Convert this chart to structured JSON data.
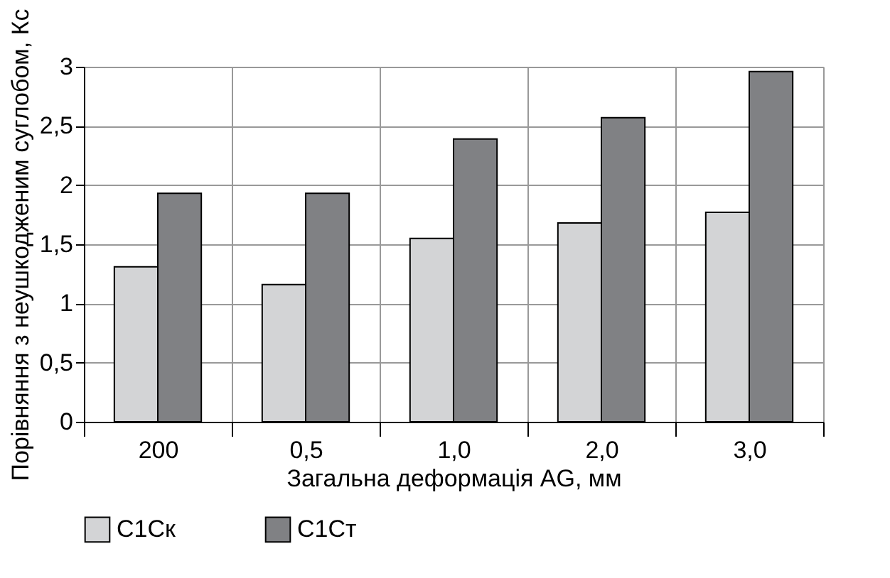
{
  "chart_data": {
    "type": "bar",
    "xlabel": "Загальна деформація AG, мм",
    "ylabel": "Порівняння з неушкодженим суглобом, Кс",
    "categories": [
      "200",
      "0,5",
      "1,0",
      "2,0",
      "3,0"
    ],
    "series": [
      {
        "name": "С1Ск",
        "color": "#d3d4d6",
        "values": [
          1.31,
          1.16,
          1.55,
          1.68,
          1.77
        ]
      },
      {
        "name": "С1Ст",
        "color": "#808184",
        "values": [
          1.93,
          1.93,
          2.39,
          2.57,
          2.96
        ]
      }
    ],
    "ylim": [
      0,
      3
    ],
    "yticks": [
      0,
      {
        "value": 0.5,
        "label": "0,5"
      },
      1,
      {
        "value": 1.5,
        "label": "1,5"
      },
      2,
      {
        "value": 2.5,
        "label": "2,5"
      },
      3
    ],
    "grid": true,
    "legend": "bottom"
  }
}
